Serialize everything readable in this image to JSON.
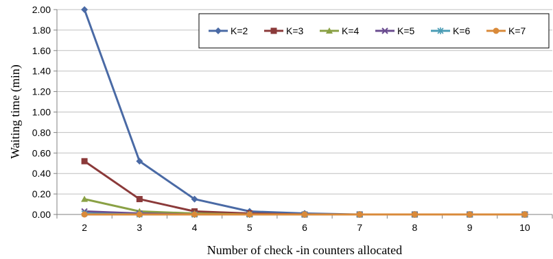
{
  "chart_data": {
    "type": "line",
    "title": "",
    "xlabel": "Number of check -in counters allocated",
    "ylabel": "Waiting time (min)",
    "x": [
      2,
      3,
      4,
      5,
      6,
      7,
      8,
      9,
      10
    ],
    "x_tick_labels": [
      "2",
      "3",
      "4",
      "5",
      "6",
      "7",
      "8",
      "9",
      "10"
    ],
    "ylim": [
      0,
      2.0
    ],
    "y_ticks": [
      0.0,
      0.2,
      0.4,
      0.6,
      0.8,
      1.0,
      1.2,
      1.4,
      1.6,
      1.8,
      2.0
    ],
    "y_tick_labels": [
      "0.00",
      "0.20",
      "0.40",
      "0.60",
      "0.80",
      "1.00",
      "1.20",
      "1.40",
      "1.60",
      "1.80",
      "2.00"
    ],
    "grid": "horizontal",
    "legend_position": "top-right",
    "series": [
      {
        "name": "K=2",
        "color": "#4a6aa5",
        "marker": "diamond",
        "values": [
          2.0,
          0.52,
          0.15,
          0.03,
          0.01,
          0.0,
          0.0,
          0.0,
          0.0
        ]
      },
      {
        "name": "K=3",
        "color": "#8b3a3a",
        "marker": "square",
        "values": [
          0.52,
          0.15,
          0.03,
          0.01,
          0.0,
          0.0,
          0.0,
          0.0,
          0.0
        ]
      },
      {
        "name": "K=4",
        "color": "#8aa145",
        "marker": "triangle",
        "values": [
          0.15,
          0.03,
          0.01,
          0.0,
          0.0,
          0.0,
          0.0,
          0.0,
          0.0
        ]
      },
      {
        "name": "K=5",
        "color": "#6a4c8f",
        "marker": "x",
        "values": [
          0.03,
          0.01,
          0.0,
          0.0,
          0.0,
          0.0,
          0.0,
          0.0,
          0.0
        ]
      },
      {
        "name": "K=6",
        "color": "#4a9cb5",
        "marker": "star",
        "values": [
          0.01,
          0.0,
          0.0,
          0.0,
          0.0,
          0.0,
          0.0,
          0.0,
          0.0
        ]
      },
      {
        "name": "K=7",
        "color": "#d98a3a",
        "marker": "circle",
        "values": [
          0.0,
          0.0,
          0.0,
          0.0,
          0.0,
          0.0,
          0.0,
          0.0,
          0.0
        ]
      }
    ]
  }
}
